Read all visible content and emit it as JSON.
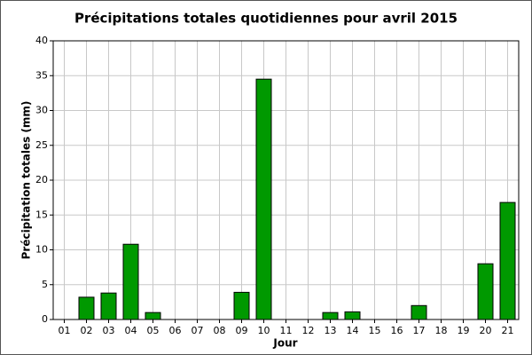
{
  "chart_data": {
    "type": "bar",
    "title": "Précipitations totales quotidiennes pour avril 2015",
    "x_label": "Jour",
    "y_label": "Précipitation totales (mm)",
    "categories": [
      "01",
      "02",
      "03",
      "04",
      "05",
      "06",
      "07",
      "08",
      "09",
      "10",
      "11",
      "12",
      "13",
      "14",
      "15",
      "16",
      "17",
      "18",
      "19",
      "20",
      "21"
    ],
    "values": [
      0,
      3.2,
      3.8,
      10.8,
      1.0,
      0,
      0,
      0,
      3.9,
      34.5,
      0,
      0,
      1.0,
      1.1,
      0,
      0,
      2.0,
      0,
      0,
      8.0,
      16.8
    ],
    "color": "#009900",
    "ylim": [
      0,
      40
    ],
    "yticks": [
      0,
      5,
      10,
      15,
      20,
      25,
      30,
      35,
      40
    ],
    "grid": true
  }
}
